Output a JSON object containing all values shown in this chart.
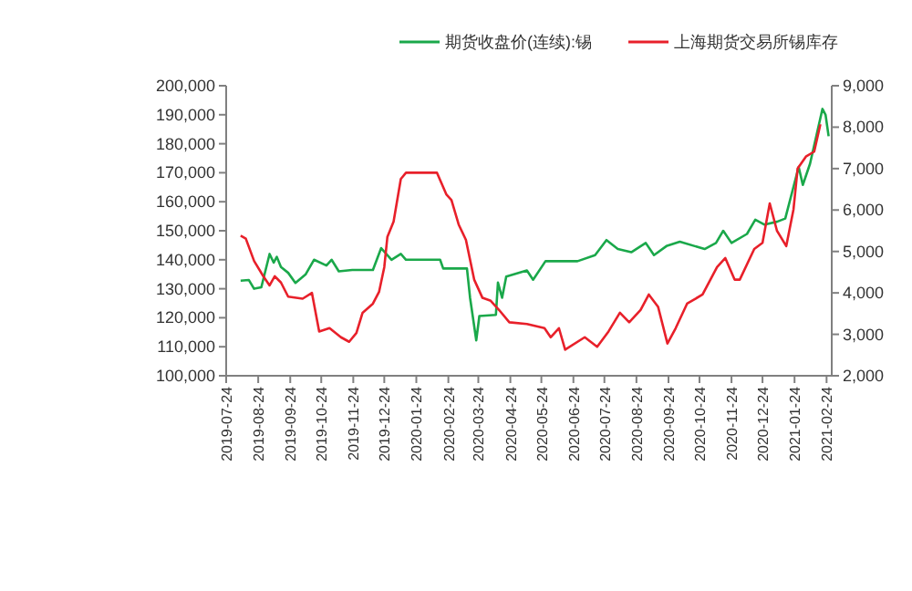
{
  "chart_data": {
    "type": "line",
    "legend": "top",
    "grid": false,
    "marker": "none",
    "line_style": "solid",
    "xlim": [
      "2019-07-24",
      "2021-03-01"
    ],
    "xticks": [
      "2019-07-24",
      "2019-08-24",
      "2019-09-24",
      "2019-10-24",
      "2019-11-24",
      "2019-12-24",
      "2020-01-24",
      "2020-02-24",
      "2020-03-24",
      "2020-04-24",
      "2020-05-24",
      "2020-06-24",
      "2020-07-24",
      "2020-08-24",
      "2020-09-24",
      "2020-10-24",
      "2020-11-24",
      "2020-12-24",
      "2021-01-24",
      "2021-02-24"
    ],
    "ylim": [
      100000,
      200000
    ],
    "yticks": [
      {
        "value": 100000,
        "label": "100,000"
      },
      {
        "value": 110000,
        "label": "110,000"
      },
      {
        "value": 120000,
        "label": "120,000"
      },
      {
        "value": 130000,
        "label": "130,000"
      },
      {
        "value": 140000,
        "label": "140,000"
      },
      {
        "value": 150000,
        "label": "150,000"
      },
      {
        "value": 160000,
        "label": "160,000"
      },
      {
        "value": 170000,
        "label": "170,000"
      },
      {
        "value": 180000,
        "label": "180,000"
      },
      {
        "value": 190000,
        "label": "190,000"
      },
      {
        "value": 200000,
        "label": "200,000"
      }
    ],
    "y2lim": [
      2000,
      9000
    ],
    "y2ticks": [
      {
        "value": 2000,
        "label": "2,000"
      },
      {
        "value": 3000,
        "label": "3,000"
      },
      {
        "value": 4000,
        "label": "4,000"
      },
      {
        "value": 5000,
        "label": "5,000"
      },
      {
        "value": 6000,
        "label": "6,000"
      },
      {
        "value": 7000,
        "label": "7,000"
      },
      {
        "value": 8000,
        "label": "8,000"
      },
      {
        "value": 9000,
        "label": "9,000"
      }
    ],
    "series": [
      {
        "name": "期货收盘价(连续):锡",
        "color": "#1aa84a",
        "x": [
          "2019-08-07",
          "2019-08-15",
          "2019-08-20",
          "2019-08-27",
          "2019-09-04",
          "2019-09-08",
          "2019-09-11",
          "2019-09-15",
          "2019-09-22",
          "2019-09-29",
          "2019-10-09",
          "2019-10-17",
          "2019-10-29",
          "2019-11-03",
          "2019-11-10",
          "2019-11-23",
          "2019-12-13",
          "2019-12-21",
          "2019-12-31",
          "2020-01-09",
          "2020-01-14",
          "2020-02-16",
          "2020-02-19",
          "2020-03-13",
          "2020-03-16",
          "2020-03-22",
          "2020-03-25",
          "2020-04-10",
          "2020-04-12",
          "2020-04-16",
          "2020-04-20",
          "2020-05-10",
          "2020-05-16",
          "2020-05-28",
          "2020-06-10",
          "2020-06-28",
          "2020-07-15",
          "2020-07-26",
          "2020-08-06",
          "2020-08-19",
          "2020-09-02",
          "2020-09-10",
          "2020-09-22",
          "2020-10-05",
          "2020-10-29",
          "2020-11-09",
          "2020-11-16",
          "2020-11-24",
          "2020-12-09",
          "2020-12-17",
          "2020-12-26",
          "2021-01-07",
          "2021-01-15",
          "2021-01-28",
          "2021-02-01",
          "2021-02-08",
          "2021-02-20",
          "2021-02-23",
          "2021-02-26"
        ],
        "values": [
          132800,
          133000,
          130000,
          130500,
          142000,
          139000,
          141000,
          137500,
          135500,
          132000,
          135000,
          140000,
          138000,
          140000,
          136000,
          136500,
          136500,
          144000,
          140000,
          142000,
          140000,
          140000,
          137000,
          137000,
          126900,
          112200,
          120600,
          121000,
          132100,
          126900,
          134200,
          136300,
          133100,
          139500,
          139500,
          139500,
          141600,
          146800,
          143700,
          142600,
          145800,
          141600,
          144700,
          146200,
          143700,
          145800,
          150000,
          145800,
          148900,
          153800,
          152100,
          153100,
          154200,
          172000,
          165800,
          173100,
          192000,
          190000,
          182600
        ]
      },
      {
        "name": "上海期货交易所锡库存",
        "color": "#e8202a",
        "axis": "y2",
        "x": [
          "2019-08-07",
          "2019-08-12",
          "2019-08-20",
          "2019-08-29",
          "2019-09-04",
          "2019-09-09",
          "2019-09-15",
          "2019-09-22",
          "2019-10-06",
          "2019-10-15",
          "2019-10-22",
          "2019-11-01",
          "2019-11-12",
          "2019-11-20",
          "2019-11-27",
          "2019-12-03",
          "2019-12-13",
          "2019-12-19",
          "2019-12-24",
          "2019-12-27",
          "2020-01-02",
          "2020-01-09",
          "2020-01-14",
          "2020-02-13",
          "2020-02-22",
          "2020-02-27",
          "2020-03-05",
          "2020-03-12",
          "2020-03-20",
          "2020-03-28",
          "2020-04-05",
          "2020-04-13",
          "2020-04-23",
          "2020-05-10",
          "2020-05-27",
          "2020-06-02",
          "2020-06-10",
          "2020-06-16",
          "2020-07-05",
          "2020-07-17",
          "2020-07-28",
          "2020-08-08",
          "2020-08-17",
          "2020-08-28",
          "2020-09-05",
          "2020-09-14",
          "2020-09-23",
          "2020-10-01",
          "2020-10-12",
          "2020-10-27",
          "2020-11-10",
          "2020-11-18",
          "2020-11-27",
          "2020-12-02",
          "2020-12-16",
          "2020-12-24",
          "2020-12-31",
          "2021-01-07",
          "2021-01-16",
          "2021-01-23",
          "2021-01-27",
          "2021-02-04",
          "2021-02-12",
          "2021-02-18"
        ],
        "values": [
          5380,
          5310,
          4770,
          4400,
          4180,
          4400,
          4250,
          3910,
          3860,
          4000,
          3070,
          3150,
          2930,
          2820,
          3030,
          3520,
          3740,
          4030,
          4620,
          5350,
          5720,
          6750,
          6900,
          6900,
          6380,
          6240,
          5650,
          5280,
          4320,
          3880,
          3810,
          3590,
          3290,
          3250,
          3150,
          2930,
          3150,
          2630,
          2930,
          2700,
          3070,
          3520,
          3290,
          3590,
          3960,
          3660,
          2780,
          3150,
          3740,
          3960,
          4620,
          4840,
          4320,
          4320,
          5060,
          5210,
          6160,
          5500,
          5130,
          6020,
          7000,
          7290,
          7410,
          8070
        ]
      }
    ]
  }
}
